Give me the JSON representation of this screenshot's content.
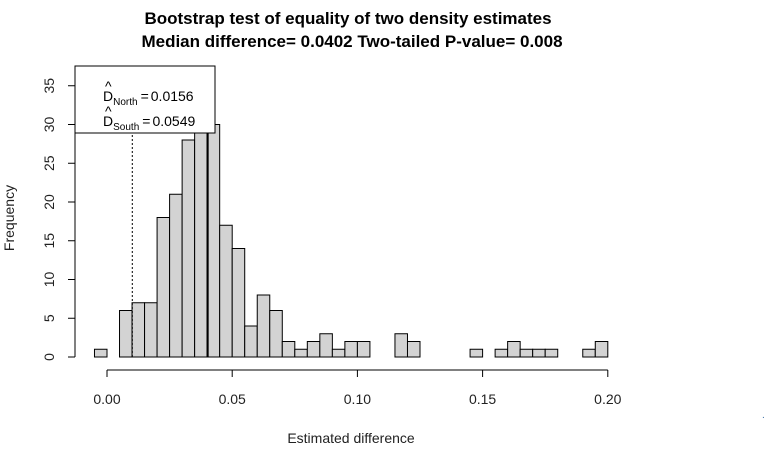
{
  "chart_data": {
    "type": "bar",
    "title": "Bootstrap test of equality of two density estimates",
    "subtitle": "Median difference= 0.0402  Two-tailed P-value= 0.008",
    "xlabel": "Estimated difference",
    "ylabel": "Frequency",
    "xlim": [
      -0.01,
      0.2
    ],
    "ylim": [
      0,
      37
    ],
    "x_ticks": [
      0.0,
      0.05,
      0.1,
      0.15,
      0.2
    ],
    "x_tick_labels": [
      "0.00",
      "0.05",
      "0.10",
      "0.15",
      "0.20"
    ],
    "y_ticks": [
      0,
      5,
      10,
      15,
      20,
      25,
      30,
      35
    ],
    "y_tick_labels": [
      "0",
      "5",
      "10",
      "15",
      "20",
      "25",
      "30",
      "35"
    ],
    "bin_width": 0.005,
    "bins": [
      {
        "x0": -0.005,
        "count": 1
      },
      {
        "x0": 0.005,
        "count": 6
      },
      {
        "x0": 0.01,
        "count": 7
      },
      {
        "x0": 0.015,
        "count": 7
      },
      {
        "x0": 0.02,
        "count": 18
      },
      {
        "x0": 0.025,
        "count": 21
      },
      {
        "x0": 0.03,
        "count": 28
      },
      {
        "x0": 0.035,
        "count": 30
      },
      {
        "x0": 0.04,
        "count": 30
      },
      {
        "x0": 0.045,
        "count": 17
      },
      {
        "x0": 0.05,
        "count": 14
      },
      {
        "x0": 0.055,
        "count": 4
      },
      {
        "x0": 0.06,
        "count": 8
      },
      {
        "x0": 0.065,
        "count": 6
      },
      {
        "x0": 0.07,
        "count": 2
      },
      {
        "x0": 0.075,
        "count": 1
      },
      {
        "x0": 0.08,
        "count": 2
      },
      {
        "x0": 0.085,
        "count": 3
      },
      {
        "x0": 0.09,
        "count": 1
      },
      {
        "x0": 0.095,
        "count": 2
      },
      {
        "x0": 0.1,
        "count": 2
      },
      {
        "x0": 0.115,
        "count": 3
      },
      {
        "x0": 0.12,
        "count": 2
      },
      {
        "x0": 0.145,
        "count": 1
      },
      {
        "x0": 0.155,
        "count": 1
      },
      {
        "x0": 0.16,
        "count": 2
      },
      {
        "x0": 0.165,
        "count": 1
      },
      {
        "x0": 0.17,
        "count": 1
      },
      {
        "x0": 0.175,
        "count": 1
      },
      {
        "x0": 0.19,
        "count": 1
      },
      {
        "x0": 0.195,
        "count": 2
      }
    ],
    "reference_lines": [
      {
        "x": 0.0402,
        "style": "solid"
      },
      {
        "x": 0.0101,
        "style": "dotted"
      }
    ],
    "legend": {
      "placement": "top-left",
      "entries": [
        {
          "symbol": "D",
          "sub": "North",
          "value": "0.0156"
        },
        {
          "symbol": "D",
          "sub": "South",
          "value": "0.0549"
        }
      ]
    },
    "colors": {
      "bar_fill": "#d3d3d3",
      "bar_stroke": "#000000"
    }
  }
}
